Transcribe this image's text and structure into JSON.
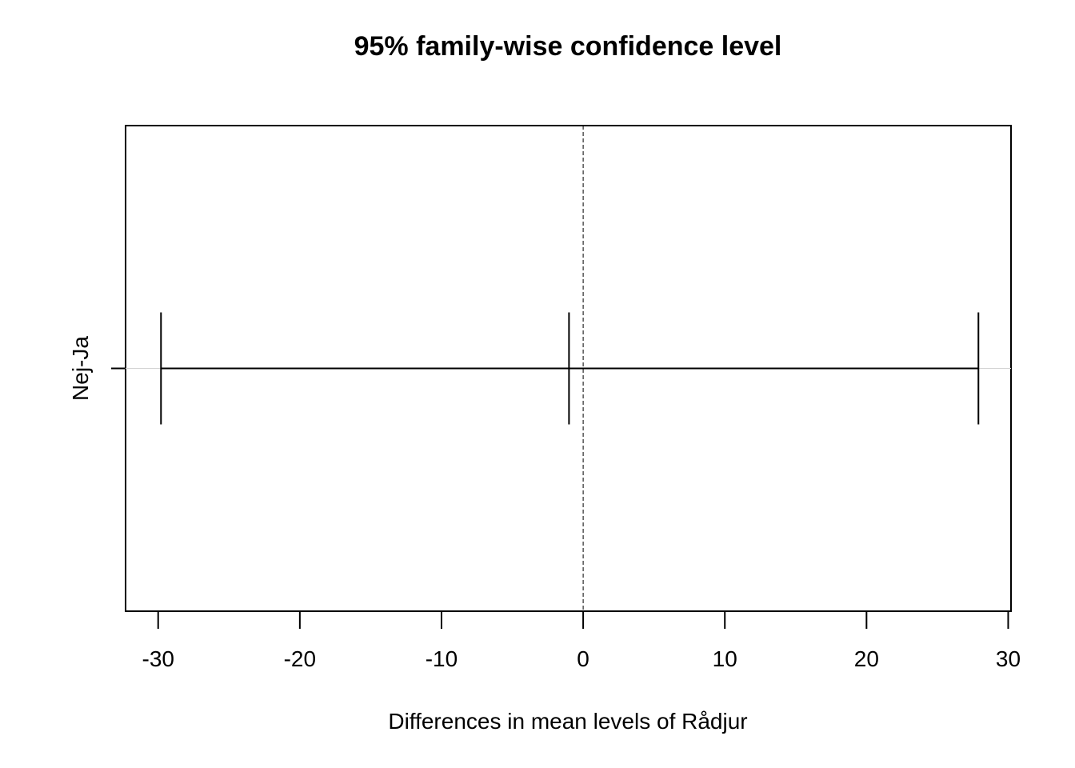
{
  "chart_data": {
    "type": "errorbar",
    "title": "95% family-wise confidence level",
    "xlabel": "Differences in mean levels of Rådjur",
    "ylabel": "",
    "xlim": [
      -32.3,
      30.2
    ],
    "xticks": [
      -30,
      -20,
      -10,
      0,
      10,
      20,
      30
    ],
    "xtick_labels": [
      "-30",
      "-20",
      "-10",
      "0",
      "10",
      "20",
      "30"
    ],
    "reference_line": {
      "x": 0,
      "style": "dashed"
    },
    "grid": false,
    "comparisons": [
      {
        "label": "Nej-Ja",
        "diff": -1.0,
        "lwr": -29.8,
        "upr": 27.9
      }
    ]
  }
}
